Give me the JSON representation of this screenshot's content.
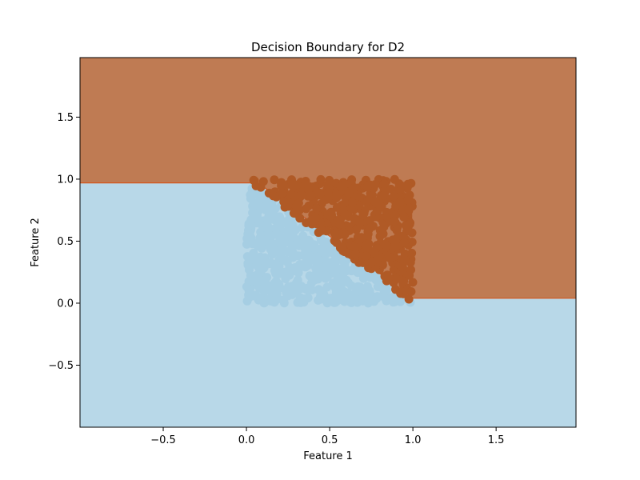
{
  "chart_data": {
    "type": "scatter",
    "title": "Decision Boundary for D2",
    "xlabel": "Feature 1",
    "ylabel": "Feature 2",
    "xlim": [
      -1.0,
      1.98
    ],
    "ylim": [
      -1.0,
      1.98
    ],
    "xticks": [
      -0.5,
      0.0,
      0.5,
      1.0,
      1.5
    ],
    "yticks": [
      -0.5,
      0.0,
      0.5,
      1.0,
      1.5
    ],
    "xtick_labels": [
      "−0.5",
      "0.0",
      "0.5",
      "1.0",
      "1.5"
    ],
    "ytick_labels": [
      "−0.5",
      "0.0",
      "0.5",
      "1.0",
      "1.5"
    ],
    "grid": false,
    "decision_regions": {
      "class_1_color": "#bf7b53",
      "class_0_color": "#b8d8e8",
      "boundary_color": "#d2561e",
      "class_1_rule": "(x < 0.07 and y >= 0.97) or (x >= 0.07 and x < 1.0 and x + y >= 1.0) or (x >= 1.0 and y >= 0.04)",
      "boundary_polyline": [
        [
          -1.0,
          0.97
        ],
        [
          0.07,
          0.97
        ],
        [
          1.0,
          0.04
        ],
        [
          1.98,
          0.04
        ]
      ]
    },
    "series": [
      {
        "class": 1,
        "color": "#b05a26",
        "region": "0 <= x <= 1, 0 <= y <= 1, x + y >= 1",
        "approx_count": 500
      },
      {
        "class": 0,
        "color": "#a6cee3",
        "region": "0 <= x <= 1, 0 <= y <= 1, x + y < 1",
        "approx_count": 500
      }
    ]
  }
}
